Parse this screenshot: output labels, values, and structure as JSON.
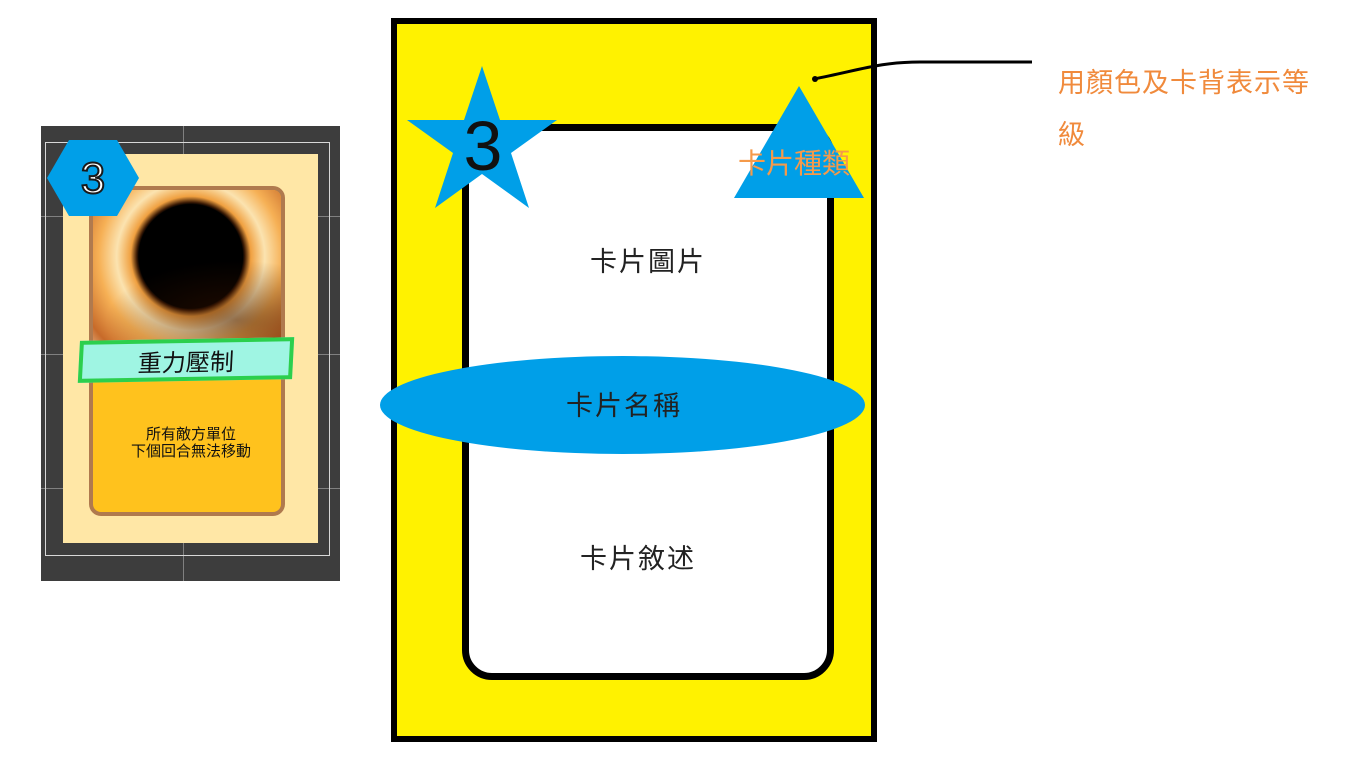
{
  "sample_card": {
    "level": "3",
    "name": "重力壓制",
    "description_lines": [
      "所有敵方單位",
      "下個回合無法移動"
    ]
  },
  "diagram": {
    "level": "3",
    "type_label": "卡片種類",
    "image_label": "卡片圖片",
    "name_label": "卡片名稱",
    "description_label": "卡片敘述"
  },
  "annotation": {
    "text": "用顏色及卡背表示等級"
  },
  "colors": {
    "card_border_yellow": "#fff200",
    "accent_blue": "#009fe8",
    "annotation_orange": "#f08a3c",
    "sample_bg": "#3d3d3d"
  }
}
